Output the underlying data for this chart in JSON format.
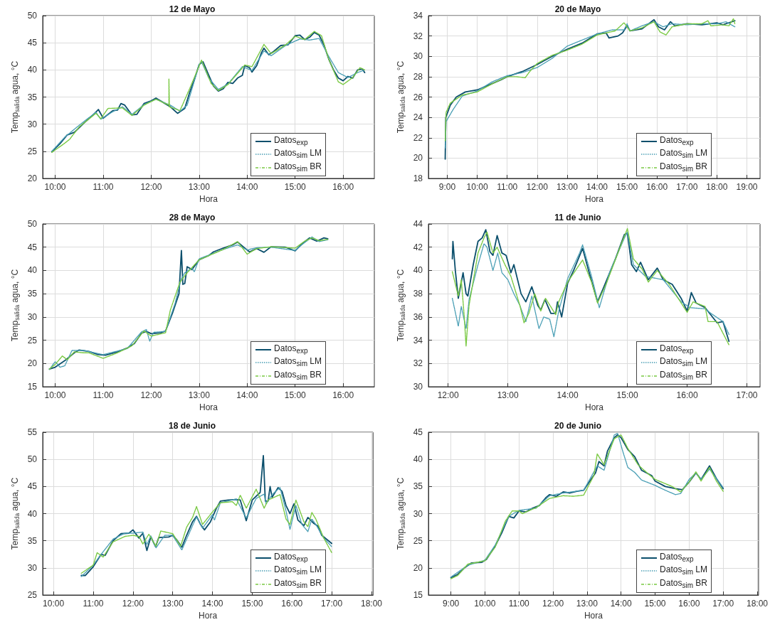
{
  "chart_data": [
    {
      "type": "line",
      "title": "12 de Mayo",
      "xlabel": "Hora",
      "ylabel": "Temp$_{salida}$ agua, °C",
      "xlim": [
        9.74,
        16.65
      ],
      "xticks": [
        {
          "value": 10,
          "label": "10:00"
        },
        {
          "value": 11,
          "label": "11:00"
        },
        {
          "value": 12,
          "label": "12:00"
        },
        {
          "value": 13,
          "label": "13:00"
        },
        {
          "value": 14,
          "label": "14:00"
        },
        {
          "value": 15,
          "label": "15:00"
        },
        {
          "value": 16,
          "label": "16:00"
        }
      ],
      "ylim": [
        20,
        50
      ],
      "yticks": [
        20,
        25,
        30,
        35,
        40,
        45,
        50
      ],
      "grid": true,
      "legend": "bottom right",
      "marker": "none",
      "series": [
        {
          "name": "Datos$_{exp}$",
          "color": "#0b4f6c",
          "line_style": "solid",
          "x": [
            9.93,
            10.1,
            10.25,
            10.4,
            10.6,
            10.8,
            10.9,
            11.0,
            11.1,
            11.2,
            11.3,
            11.37,
            11.45,
            11.6,
            11.7,
            11.85,
            12.0,
            12.1,
            12.25,
            12.4,
            12.55,
            12.7,
            12.8,
            12.9,
            13.0,
            13.08,
            13.2,
            13.3,
            13.4,
            13.5,
            13.6,
            13.7,
            13.8,
            13.9,
            13.95,
            14.05,
            14.1,
            14.2,
            14.3,
            14.35,
            14.45,
            14.55,
            14.7,
            14.85,
            15.0,
            15.1,
            15.2,
            15.3,
            15.4,
            15.5,
            15.6,
            15.7,
            15.8,
            15.9,
            16.0,
            16.1,
            16.2,
            16.3,
            16.4,
            16.45
          ],
          "values": [
            24.9,
            26.4,
            28.0,
            28.5,
            30.2,
            31.8,
            32.7,
            31.1,
            31.8,
            32.5,
            32.6,
            33.8,
            33.5,
            31.7,
            31.8,
            33.8,
            34.3,
            34.8,
            34.0,
            33.2,
            32.0,
            32.9,
            35.8,
            38.2,
            41.0,
            41.5,
            39.0,
            37.0,
            36.1,
            36.5,
            37.7,
            37.5,
            38.5,
            39.0,
            40.8,
            40.4,
            39.6,
            40.8,
            43.2,
            44.0,
            42.8,
            43.4,
            44.5,
            44.6,
            46.3,
            46.4,
            45.6,
            46.0,
            46.9,
            46.4,
            44.6,
            42.0,
            40.0,
            38.5,
            38.0,
            38.8,
            38.5,
            40.0,
            40.2,
            39.5
          ]
        },
        {
          "name": "Datos$_{sim}$ LM",
          "color": "#4a9fb5",
          "line_style": "dotted",
          "x": [
            9.93,
            10.2,
            10.5,
            10.85,
            10.95,
            11.2,
            11.4,
            11.6,
            11.85,
            12.1,
            12.4,
            12.6,
            12.75,
            13.0,
            13.05,
            13.2,
            13.4,
            13.6,
            13.9,
            14.1,
            14.35,
            14.5,
            14.8,
            15.1,
            15.3,
            15.5,
            15.7,
            15.9,
            16.1,
            16.3,
            16.45
          ],
          "values": [
            25.0,
            27.6,
            29.8,
            32.2,
            30.9,
            32.3,
            33.2,
            31.8,
            33.6,
            34.6,
            33.5,
            32.4,
            33.5,
            41.0,
            41.5,
            38.5,
            36.4,
            37.4,
            40.6,
            39.9,
            43.5,
            42.6,
            44.5,
            45.7,
            45.5,
            45.8,
            42.5,
            39.5,
            38.6,
            39.5,
            40.0
          ]
        },
        {
          "name": "Datos$_{sim}$ BR",
          "color": "#7ac943",
          "line_style": "dashed",
          "x": [
            9.93,
            10.2,
            10.3,
            10.5,
            10.85,
            10.95,
            11.1,
            11.4,
            11.6,
            11.85,
            12.1,
            12.37,
            12.37,
            12.38,
            12.6,
            12.8,
            13.05,
            13.25,
            13.4,
            13.6,
            13.95,
            14.1,
            14.35,
            14.5,
            14.8,
            15.0,
            15.2,
            15.4,
            15.55,
            15.7,
            15.9,
            16.0,
            16.2,
            16.35,
            16.45
          ],
          "values": [
            24.8,
            26.5,
            27.2,
            29.5,
            32.0,
            31.0,
            32.9,
            33.0,
            31.6,
            33.5,
            34.6,
            33.5,
            38.3,
            33.2,
            32.5,
            36.5,
            41.8,
            37.5,
            36.2,
            37.3,
            40.9,
            40.6,
            44.7,
            43.0,
            44.6,
            46.2,
            45.6,
            47.1,
            46.3,
            42.0,
            37.8,
            37.3,
            38.6,
            40.4,
            40.0
          ]
        }
      ]
    },
    {
      "type": "line",
      "title": "20 de Mayo",
      "xlabel": "Hora",
      "ylabel": "Temp$_{salida}$ agua, °C",
      "xlim": [
        8.37,
        19.44
      ],
      "xticks": [
        {
          "value": 9,
          "label": "9:00"
        },
        {
          "value": 10,
          "label": "10:00"
        },
        {
          "value": 11,
          "label": "11:00"
        },
        {
          "value": 12,
          "label": "12:00"
        },
        {
          "value": 13,
          "label": "13:00"
        },
        {
          "value": 14,
          "label": "14:00"
        },
        {
          "value": 15,
          "label": "15:00"
        },
        {
          "value": 16,
          "label": "16:00"
        },
        {
          "value": 17,
          "label": "17:00"
        },
        {
          "value": 18,
          "label": "18:00"
        },
        {
          "value": 19,
          "label": "19:00"
        }
      ],
      "ylim": [
        18,
        34
      ],
      "yticks": [
        18,
        20,
        22,
        24,
        26,
        28,
        30,
        32,
        34
      ],
      "grid": true,
      "legend": "bottom right",
      "marker": "none",
      "series": [
        {
          "name": "Datos$_{exp}$",
          "color": "#0b4f6c",
          "line_style": "solid",
          "x": [
            8.93,
            8.95,
            9.1,
            9.3,
            9.6,
            10.0,
            10.4,
            10.8,
            11.0,
            11.5,
            12.0,
            12.5,
            13.0,
            13.5,
            14.0,
            14.3,
            14.4,
            14.7,
            14.85,
            15.0,
            15.1,
            15.5,
            15.9,
            16.05,
            16.25,
            16.45,
            16.6,
            17.0,
            17.5,
            18.0,
            18.2,
            18.4,
            18.6
          ],
          "values": [
            19.9,
            24.0,
            25.2,
            26.0,
            26.5,
            26.7,
            27.2,
            27.7,
            28.0,
            28.5,
            29.2,
            30.0,
            30.7,
            31.3,
            32.2,
            32.3,
            31.8,
            32.0,
            32.3,
            33.0,
            32.5,
            32.7,
            33.6,
            32.9,
            32.6,
            33.4,
            33.0,
            33.2,
            33.1,
            33.3,
            33.1,
            33.3,
            33.5
          ]
        },
        {
          "name": "Datos$_{sim}$ LM",
          "color": "#4a9fb5",
          "line_style": "dotted",
          "x": [
            8.93,
            8.96,
            9.2,
            9.5,
            10.0,
            10.5,
            11.0,
            11.5,
            12.0,
            12.5,
            13.0,
            13.5,
            14.0,
            14.5,
            14.9,
            15.0,
            15.1,
            15.5,
            15.9,
            16.2,
            16.5,
            17.0,
            17.5,
            18.0,
            18.3,
            18.6
          ],
          "values": [
            21.0,
            23.6,
            24.8,
            26.1,
            26.6,
            27.5,
            28.1,
            28.4,
            28.9,
            29.8,
            31.0,
            31.6,
            32.2,
            32.6,
            32.6,
            33.2,
            32.5,
            33.0,
            33.4,
            32.9,
            33.2,
            33.1,
            33.2,
            33.2,
            33.4,
            32.9
          ]
        },
        {
          "name": "Datos$_{sim}$ BR",
          "color": "#7ac943",
          "line_style": "dashed",
          "x": [
            8.93,
            8.96,
            9.1,
            9.5,
            10.0,
            10.5,
            11.0,
            11.3,
            11.6,
            11.75,
            12.0,
            12.5,
            13.0,
            13.5,
            14.0,
            14.3,
            14.6,
            14.9,
            15.0,
            15.1,
            15.5,
            15.9,
            16.1,
            16.3,
            16.5,
            17.0,
            17.5,
            17.7,
            17.8,
            18.2,
            18.4,
            18.55,
            18.6
          ],
          "values": [
            21.7,
            24.5,
            25.4,
            26.2,
            26.5,
            27.3,
            28.0,
            28.0,
            27.9,
            28.5,
            29.3,
            30.1,
            30.6,
            31.2,
            32.1,
            32.3,
            32.5,
            33.3,
            32.9,
            32.5,
            32.8,
            33.4,
            32.4,
            32.1,
            32.9,
            33.2,
            33.2,
            33.5,
            33.0,
            33.1,
            33.0,
            33.7,
            33.2
          ]
        }
      ]
    },
    {
      "type": "line",
      "title": "28 de Mayo",
      "xlabel": "Hora",
      "ylabel": "Temp$_{salida}$ agua, °C",
      "xlim": [
        9.74,
        16.65
      ],
      "xticks": [
        {
          "value": 10,
          "label": "10:00"
        },
        {
          "value": 11,
          "label": "11:00"
        },
        {
          "value": 12,
          "label": "12:00"
        },
        {
          "value": 13,
          "label": "13:00"
        },
        {
          "value": 14,
          "label": "14:00"
        },
        {
          "value": 15,
          "label": "15:00"
        },
        {
          "value": 16,
          "label": "16:00"
        }
      ],
      "ylim": [
        15,
        50
      ],
      "yticks": [
        15,
        20,
        25,
        30,
        35,
        40,
        45,
        50
      ],
      "grid": true,
      "legend": "bottom right",
      "marker": "none",
      "series": [
        {
          "name": "Datos$_{exp}$",
          "color": "#0b4f6c",
          "line_style": "solid",
          "x": [
            9.88,
            10.0,
            10.2,
            10.4,
            10.5,
            10.7,
            10.9,
            11.05,
            11.3,
            11.5,
            11.65,
            11.8,
            11.9,
            12.0,
            12.2,
            12.3,
            12.45,
            12.58,
            12.63,
            12.66,
            12.7,
            12.75,
            12.85,
            13.0,
            13.2,
            13.3,
            13.5,
            13.7,
            13.8,
            13.95,
            14.05,
            14.2,
            14.35,
            14.5,
            14.8,
            15.0,
            15.15,
            15.3,
            15.45,
            15.6,
            15.68
          ],
          "values": [
            18.8,
            19.2,
            20.6,
            22.3,
            22.9,
            22.6,
            21.9,
            21.8,
            22.5,
            23.3,
            24.3,
            26.5,
            26.9,
            26.4,
            26.6,
            27.0,
            31.0,
            35.0,
            44.3,
            37.0,
            37.2,
            40.8,
            40.2,
            42.3,
            43.2,
            44.0,
            44.8,
            45.5,
            46.1,
            44.8,
            44.0,
            44.7,
            43.9,
            45.1,
            45.0,
            44.2,
            45.8,
            47.0,
            46.3,
            47.0,
            46.8
          ]
        },
        {
          "name": "Datos$_{sim}$ LM",
          "color": "#4a9fb5",
          "line_style": "dotted",
          "x": [
            9.88,
            10.0,
            10.1,
            10.2,
            10.35,
            10.6,
            11.0,
            11.5,
            11.8,
            11.9,
            11.97,
            12.05,
            12.3,
            12.5,
            12.62,
            12.7,
            12.85,
            12.9,
            13.0,
            13.5,
            13.8,
            14.0,
            14.2,
            14.5,
            15.0,
            15.15,
            15.35,
            15.5,
            15.68
          ],
          "values": [
            18.7,
            20.4,
            19.2,
            19.5,
            22.8,
            22.8,
            21.9,
            23.2,
            26.8,
            27.3,
            24.8,
            26.7,
            26.9,
            33.0,
            38.0,
            39.5,
            40.5,
            39.7,
            42.5,
            44.5,
            45.5,
            44.4,
            44.9,
            45.0,
            44.3,
            45.6,
            47.2,
            46.2,
            46.6
          ]
        },
        {
          "name": "Datos$_{sim}$ BR",
          "color": "#7ac943",
          "line_style": "dashed",
          "x": [
            9.88,
            10.0,
            10.15,
            10.25,
            10.4,
            10.58,
            10.7,
            11.0,
            11.3,
            11.6,
            11.85,
            12.0,
            12.3,
            12.4,
            12.6,
            12.75,
            13.0,
            13.5,
            13.8,
            14.0,
            14.2,
            14.5,
            15.0,
            15.2,
            15.35,
            15.5,
            15.68
          ],
          "values": [
            18.8,
            19.8,
            21.6,
            20.8,
            22.5,
            22.3,
            22.3,
            21.1,
            22.3,
            23.8,
            27.0,
            25.9,
            26.6,
            31.5,
            37.5,
            39.5,
            42.3,
            44.5,
            46.2,
            43.5,
            44.7,
            45.1,
            44.8,
            46.3,
            47.0,
            46.4,
            46.7
          ]
        }
      ]
    },
    {
      "type": "line",
      "title": "11 de Junio",
      "xlabel": "Hora",
      "ylabel": "Temp$_{salida}$ agua, °C",
      "xlim": [
        11.67,
        17.22
      ],
      "xticks": [
        {
          "value": 12,
          "label": "12:00"
        },
        {
          "value": 13,
          "label": "13:00"
        },
        {
          "value": 14,
          "label": "14:00"
        },
        {
          "value": 15,
          "label": "15:00"
        },
        {
          "value": 16,
          "label": "16:00"
        },
        {
          "value": 17,
          "label": "17:00"
        }
      ],
      "ylim": [
        30,
        44
      ],
      "yticks": [
        30,
        32,
        34,
        36,
        38,
        40,
        42,
        44
      ],
      "grid": true,
      "legend": "bottom right",
      "marker": "none",
      "series": [
        {
          "name": "Datos$_{exp}$",
          "color": "#0b4f6c",
          "line_style": "solid",
          "x": [
            12.07,
            12.08,
            12.12,
            12.17,
            12.25,
            12.3,
            12.33,
            12.42,
            12.5,
            12.57,
            12.63,
            12.7,
            12.75,
            12.82,
            12.9,
            12.97,
            13.05,
            13.1,
            13.22,
            13.3,
            13.4,
            13.5,
            13.55,
            13.62,
            13.72,
            13.8,
            13.83,
            13.9,
            14.0,
            14.1,
            14.25,
            14.35,
            14.5,
            14.6,
            14.8,
            14.95,
            15.0,
            15.07,
            15.15,
            15.22,
            15.35,
            15.5,
            15.6,
            15.75,
            15.9,
            16.0,
            16.07,
            16.15,
            16.3,
            16.5,
            16.6,
            16.7
          ],
          "values": [
            41.0,
            42.5,
            40.0,
            37.6,
            39.8,
            38.0,
            37.8,
            40.5,
            42.5,
            42.8,
            43.5,
            41.6,
            41.3,
            43.0,
            41.5,
            41.3,
            39.8,
            40.5,
            38.0,
            37.3,
            38.6,
            37.0,
            36.6,
            37.5,
            36.3,
            36.3,
            37.3,
            36.0,
            38.9,
            40.0,
            41.9,
            40.0,
            37.3,
            38.5,
            41.0,
            43.1,
            43.2,
            40.5,
            39.9,
            40.7,
            39.2,
            40.2,
            39.2,
            38.8,
            37.6,
            36.5,
            38.1,
            37.2,
            36.8,
            35.5,
            35.6,
            33.9
          ]
        },
        {
          "name": "Datos$_{sim}$ LM",
          "color": "#4a9fb5",
          "line_style": "dotted",
          "x": [
            12.07,
            12.17,
            12.22,
            12.3,
            12.35,
            12.5,
            12.6,
            12.65,
            12.75,
            12.83,
            12.9,
            13.0,
            13.1,
            13.2,
            13.3,
            13.4,
            13.52,
            13.6,
            13.7,
            13.77,
            13.85,
            14.0,
            14.2,
            14.25,
            14.4,
            14.53,
            14.7,
            14.95,
            15.0,
            15.1,
            15.3,
            15.6,
            15.9,
            16.05,
            16.3,
            16.4,
            16.6,
            16.7
          ],
          "values": [
            37.6,
            35.2,
            36.9,
            35.0,
            37.5,
            40.5,
            42.3,
            42.0,
            40.0,
            41.5,
            39.8,
            39.2,
            38.0,
            37.0,
            35.6,
            37.8,
            35.0,
            36.0,
            35.8,
            34.3,
            36.5,
            39.3,
            41.5,
            42.2,
            39.5,
            36.8,
            39.8,
            42.8,
            43.3,
            40.5,
            39.5,
            39.2,
            37.3,
            36.8,
            36.7,
            36.3,
            35.6,
            34.5
          ]
        },
        {
          "name": "Datos$_{sim}$ BR",
          "color": "#7ac943",
          "line_style": "dashed",
          "x": [
            12.07,
            12.17,
            12.22,
            12.27,
            12.3,
            12.35,
            12.5,
            12.6,
            12.65,
            12.75,
            12.82,
            12.95,
            13.05,
            13.2,
            13.27,
            13.35,
            13.45,
            13.55,
            13.63,
            13.8,
            13.85,
            14.0,
            14.25,
            14.4,
            14.5,
            14.65,
            14.9,
            15.0,
            15.1,
            15.25,
            15.35,
            15.5,
            15.7,
            15.85,
            16.0,
            16.1,
            16.3,
            16.35,
            16.5,
            16.7
          ],
          "values": [
            39.9,
            37.8,
            39.2,
            36.0,
            33.5,
            37.0,
            41.5,
            42.8,
            43.3,
            41.5,
            42.0,
            40.5,
            39.5,
            37.0,
            35.5,
            36.3,
            38.0,
            36.5,
            37.6,
            36.2,
            37.3,
            39.0,
            40.9,
            39.0,
            37.2,
            38.9,
            42.3,
            43.6,
            41.0,
            40.1,
            39.0,
            40.0,
            38.8,
            37.6,
            36.4,
            37.3,
            36.9,
            35.6,
            35.6,
            33.6
          ]
        }
      ]
    },
    {
      "type": "line",
      "title": "18 de Junio",
      "xlabel": "Hora",
      "ylabel": "Temp$_{salida}$ agua, °C",
      "xlim": [
        9.73,
        18.04
      ],
      "xticks": [
        {
          "value": 10,
          "label": "10:00"
        },
        {
          "value": 11,
          "label": "11:00"
        },
        {
          "value": 12,
          "label": "12:00"
        },
        {
          "value": 13,
          "label": "13:00"
        },
        {
          "value": 14,
          "label": "14:00"
        },
        {
          "value": 15,
          "label": "15:00"
        },
        {
          "value": 16,
          "label": "16:00"
        },
        {
          "value": 17,
          "label": "17:00"
        },
        {
          "value": 18,
          "label": "18:00"
        }
      ],
      "ylim": [
        25,
        55
      ],
      "yticks": [
        25,
        30,
        35,
        40,
        45,
        50,
        55
      ],
      "grid": true,
      "legend": "bottom right",
      "marker": "none",
      "series": [
        {
          "name": "Datos$_{exp}$",
          "color": "#0b4f6c",
          "line_style": "solid",
          "x": [
            10.7,
            10.8,
            11.0,
            11.2,
            11.3,
            11.5,
            11.7,
            11.9,
            12.0,
            12.15,
            12.25,
            12.35,
            12.45,
            12.57,
            12.65,
            12.9,
            13.0,
            13.1,
            13.23,
            13.35,
            13.5,
            13.6,
            13.7,
            13.8,
            13.95,
            14.1,
            14.2,
            14.4,
            14.6,
            14.7,
            14.85,
            15.0,
            15.2,
            15.28,
            15.33,
            15.4,
            15.45,
            15.5,
            15.65,
            15.75,
            15.85,
            15.95,
            16.05,
            16.15,
            16.3,
            16.4,
            16.55,
            16.65,
            16.75,
            17.0
          ],
          "values": [
            28.6,
            28.6,
            30.2,
            32.5,
            32.3,
            35.0,
            36.3,
            36.4,
            37.0,
            35.5,
            36.4,
            33.2,
            35.7,
            33.9,
            35.6,
            35.7,
            36.0,
            35.2,
            33.8,
            36.0,
            38.5,
            39.5,
            38.0,
            37.0,
            38.5,
            41.0,
            42.3,
            42.5,
            42.6,
            42.5,
            38.7,
            42.5,
            43.9,
            50.7,
            42.3,
            42.3,
            45.0,
            43.0,
            44.8,
            44.1,
            41.5,
            40.0,
            41.8,
            38.8,
            37.8,
            39.3,
            38.2,
            37.7,
            36.0,
            34.5
          ]
        },
        {
          "name": "Datos$_{sim}$ LM",
          "color": "#4a9fb5",
          "line_style": "dotted",
          "x": [
            10.7,
            11.0,
            11.2,
            11.5,
            11.8,
            12.0,
            12.25,
            12.35,
            12.45,
            12.58,
            12.8,
            13.0,
            13.23,
            13.5,
            13.6,
            13.75,
            14.0,
            14.05,
            14.2,
            14.6,
            14.85,
            15.1,
            15.3,
            15.35,
            15.5,
            15.7,
            15.85,
            15.95,
            16.1,
            16.25,
            16.4,
            16.5,
            16.6,
            16.8,
            17.0
          ],
          "values": [
            28.4,
            30.5,
            32.5,
            35.3,
            36.4,
            36.4,
            36.6,
            34.3,
            35.9,
            33.7,
            36.0,
            36.0,
            33.3,
            37.8,
            39.4,
            37.3,
            39.8,
            38.8,
            42.0,
            42.7,
            39.2,
            42.8,
            43.6,
            41.8,
            43.5,
            44.8,
            40.5,
            37.1,
            41.5,
            38.0,
            36.7,
            39.0,
            38.0,
            35.5,
            33.9
          ]
        },
        {
          "name": "Datos$_{sim}$ BR",
          "color": "#7ac943",
          "line_style": "dashed",
          "x": [
            10.7,
            11.0,
            11.1,
            11.25,
            11.5,
            11.8,
            12.0,
            12.15,
            12.25,
            12.4,
            12.58,
            12.7,
            13.0,
            13.2,
            13.35,
            13.5,
            13.6,
            13.75,
            14.0,
            14.2,
            14.5,
            14.6,
            14.7,
            14.85,
            15.1,
            15.3,
            15.4,
            15.7,
            15.85,
            15.95,
            16.1,
            16.3,
            16.4,
            16.5,
            16.6,
            16.8,
            17.0
          ],
          "values": [
            29.0,
            30.5,
            32.8,
            32.0,
            34.8,
            35.8,
            36.0,
            35.8,
            34.4,
            36.2,
            34.0,
            36.8,
            36.3,
            34.0,
            37.5,
            39.3,
            41.3,
            38.0,
            40.3,
            42.0,
            42.2,
            41.5,
            43.4,
            41.0,
            44.5,
            41.0,
            42.5,
            43.5,
            39.0,
            38.0,
            42.5,
            38.5,
            37.6,
            40.2,
            39.0,
            35.5,
            32.8
          ]
        }
      ]
    },
    {
      "type": "line",
      "title": "20 de Junio",
      "xlabel": "Hora",
      "ylabel": "Temp$_{salida}$ agua, °C",
      "xlim": [
        8.34,
        18.04
      ],
      "xticks": [
        {
          "value": 9,
          "label": "9:00"
        },
        {
          "value": 10,
          "label": "10:00"
        },
        {
          "value": 11,
          "label": "11:00"
        },
        {
          "value": 12,
          "label": "12:00"
        },
        {
          "value": 13,
          "label": "13:00"
        },
        {
          "value": 14,
          "label": "14:00"
        },
        {
          "value": 15,
          "label": "15:00"
        },
        {
          "value": 16,
          "label": "16:00"
        },
        {
          "value": 17,
          "label": "17:00"
        },
        {
          "value": 18,
          "label": "18:00"
        }
      ],
      "ylim": [
        15,
        45
      ],
      "yticks": [
        15,
        20,
        25,
        30,
        35,
        40,
        45
      ],
      "grid": true,
      "legend": "bottom right",
      "marker": "none",
      "series": [
        {
          "name": "Datos$_{exp}$",
          "color": "#0b4f6c",
          "line_style": "solid",
          "x": [
            9.0,
            9.2,
            9.4,
            9.6,
            9.9,
            10.05,
            10.3,
            10.5,
            10.7,
            10.85,
            11.0,
            11.2,
            11.4,
            11.6,
            11.8,
            11.9,
            12.1,
            12.3,
            12.5,
            12.7,
            12.9,
            13.05,
            13.25,
            13.35,
            13.5,
            13.6,
            13.8,
            13.9,
            14.0,
            14.2,
            14.4,
            14.6,
            14.9,
            15.0,
            15.3,
            15.6,
            15.8,
            16.0,
            16.2,
            16.35,
            16.6,
            16.8,
            17.0
          ],
          "values": [
            18.2,
            18.8,
            20.0,
            20.9,
            21.0,
            21.6,
            24.0,
            26.5,
            29.5,
            29.2,
            30.5,
            30.3,
            31.0,
            31.5,
            33.0,
            33.5,
            33.2,
            34.0,
            33.8,
            34.1,
            34.3,
            35.7,
            37.5,
            39.6,
            38.8,
            41.5,
            44.0,
            44.5,
            44.0,
            41.8,
            40.5,
            38.0,
            37.0,
            36.0,
            35.0,
            34.6,
            34.4,
            35.8,
            37.5,
            36.3,
            38.8,
            36.5,
            34.6
          ]
        },
        {
          "name": "Datos$_{sim}$ LM",
          "color": "#4a9fb5",
          "line_style": "dotted",
          "x": [
            9.0,
            9.5,
            10.0,
            10.3,
            10.7,
            11.0,
            11.5,
            11.9,
            12.3,
            12.9,
            13.3,
            13.5,
            13.8,
            13.9,
            14.05,
            14.2,
            14.4,
            14.6,
            15.0,
            15.3,
            15.6,
            15.75,
            16.0,
            16.2,
            16.35,
            16.6,
            17.0
          ],
          "values": [
            18.3,
            20.5,
            21.4,
            24.2,
            29.5,
            30.6,
            31.0,
            33.3,
            33.8,
            34.3,
            38.8,
            38.0,
            44.5,
            44.8,
            41.5,
            38.5,
            37.6,
            36.2,
            35.2,
            34.3,
            33.5,
            33.7,
            36.3,
            37.5,
            36.3,
            38.2,
            34.8
          ]
        },
        {
          "name": "Datos$_{sim}$ BR",
          "color": "#7ac943",
          "line_style": "dashed",
          "x": [
            9.0,
            9.2,
            9.5,
            10.0,
            10.3,
            10.6,
            10.8,
            11.0,
            11.1,
            11.5,
            11.9,
            12.3,
            12.6,
            12.9,
            13.2,
            13.3,
            13.5,
            13.8,
            14.0,
            14.2,
            14.5,
            14.8,
            15.0,
            15.5,
            15.75,
            16.0,
            16.2,
            16.35,
            16.6,
            16.8,
            17.0
          ],
          "values": [
            18.0,
            18.6,
            20.7,
            21.3,
            23.8,
            28.6,
            30.5,
            30.5,
            30.0,
            31.1,
            32.8,
            33.3,
            33.2,
            33.4,
            37.0,
            41.0,
            39.0,
            43.8,
            44.5,
            42.0,
            39.0,
            37.3,
            36.3,
            35.0,
            34.0,
            35.8,
            37.7,
            36.0,
            38.5,
            36.0,
            34.1
          ]
        }
      ]
    }
  ]
}
